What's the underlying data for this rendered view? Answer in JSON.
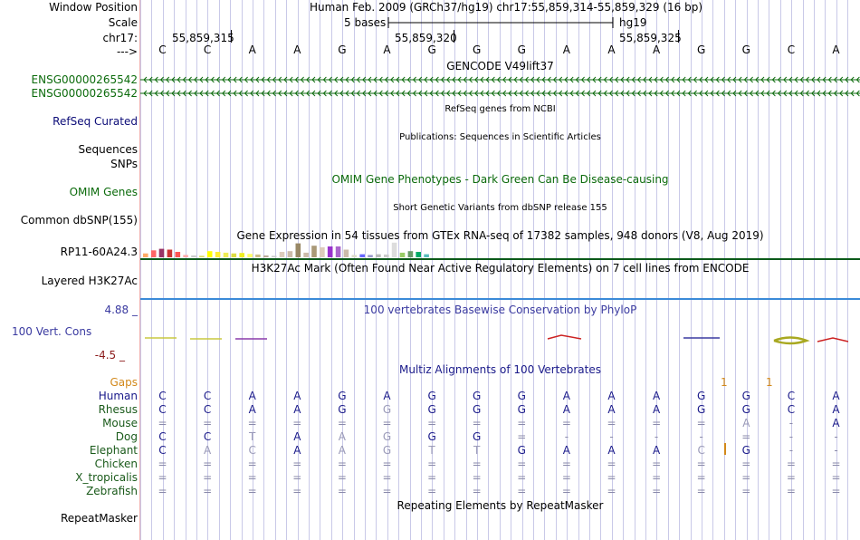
{
  "header": {
    "window_position_label": "Window Position",
    "window_position_value": "Human Feb. 2009 (GRCh37/hg19)   chr17:55,859,314-55,859,329 (16 bp)",
    "scale_label": "Scale",
    "scale_text": "5 bases",
    "scale_assembly": "hg19",
    "chrom_label": "chr17:",
    "ticks": [
      "55,859,315",
      "55,859,320",
      "55,859,325"
    ],
    "strand_label": "--->"
  },
  "bases": [
    "C",
    "C",
    "A",
    "A",
    "G",
    "A",
    "G",
    "G",
    "G",
    "A",
    "A",
    "A",
    "G",
    "G",
    "C",
    "A"
  ],
  "tracks": {
    "gencode_title": "GENCODE V49lift37",
    "gencode_ids": [
      "ENSG00000265542",
      "ENSG00000265542"
    ],
    "refseq_label": "RefSeq Curated",
    "refseq_title": "RefSeq genes from NCBI",
    "sequences_label": "Sequences",
    "sequences_title": "Publications: Sequences in Scientific Articles",
    "snps_label": "SNPs",
    "omim_title": "OMIM Gene Phenotypes - Dark Green Can Be Disease-causing",
    "omim_label": "OMIM Genes",
    "dbsnp_title": "Short Genetic Variants from dbSNP release 155",
    "dbsnp_label": "Common dbSNP(155)",
    "gtex_title": "Gene Expression in 54 tissues from GTEx RNA-seq of 17382 samples, 948 donors (V8, Aug 2019)",
    "gtex_label": "RP11-60A24.3",
    "gtex_bars": [
      {
        "v": 0.25,
        "c": "#ffaa66"
      },
      {
        "v": 0.45,
        "c": "#ff6666"
      },
      {
        "v": 0.55,
        "c": "#993366"
      },
      {
        "v": 0.5,
        "c": "#cc3333"
      },
      {
        "v": 0.35,
        "c": "#ff5555"
      },
      {
        "v": 0.15,
        "c": "#ffaaaa"
      },
      {
        "v": 0.12,
        "c": "#cccccc"
      },
      {
        "v": 0.1,
        "c": "#dddd66"
      },
      {
        "v": 0.4,
        "c": "#ffff00"
      },
      {
        "v": 0.35,
        "c": "#ffee33"
      },
      {
        "v": 0.3,
        "c": "#eeee55"
      },
      {
        "v": 0.25,
        "c": "#dddd44"
      },
      {
        "v": 0.28,
        "c": "#eeee22"
      },
      {
        "v": 0.22,
        "c": "#ffff66"
      },
      {
        "v": 0.18,
        "c": "#ccbb88"
      },
      {
        "v": 0.12,
        "c": "#bbaa99"
      },
      {
        "v": 0.1,
        "c": "#cccccc"
      },
      {
        "v": 0.35,
        "c": "#ddccbb"
      },
      {
        "v": 0.4,
        "c": "#ccbbaa"
      },
      {
        "v": 0.9,
        "c": "#998866"
      },
      {
        "v": 0.3,
        "c": "#ccbbaa"
      },
      {
        "v": 0.75,
        "c": "#aa9977"
      },
      {
        "v": 0.65,
        "c": "#ddccbb"
      },
      {
        "v": 0.7,
        "c": "#9933cc"
      },
      {
        "v": 0.7,
        "c": "#aa66cc"
      },
      {
        "v": 0.5,
        "c": "#ccbbaa"
      },
      {
        "v": 0.15,
        "c": "#ddddcc"
      },
      {
        "v": 0.2,
        "c": "#6666ff"
      },
      {
        "v": 0.15,
        "c": "#9999cc"
      },
      {
        "v": 0.2,
        "c": "#bbbbbb"
      },
      {
        "v": 0.18,
        "c": "#cccccc"
      },
      {
        "v": 0.95,
        "c": "#dddddd"
      },
      {
        "v": 0.3,
        "c": "#99cc66"
      },
      {
        "v": 0.4,
        "c": "#669966"
      },
      {
        "v": 0.35,
        "c": "#00aa66"
      },
      {
        "v": 0.2,
        "c": "#55bbbb"
      }
    ],
    "h3k27ac_title": "H3K27Ac Mark (Often Found Near Active Regulatory Elements) on 7 cell lines from ENCODE",
    "h3k27ac_label": "Layered H3K27Ac",
    "phylop_max": "4.88 _",
    "phylop_title": "100 vertebrates Basewise Conservation by PhyloP",
    "phylop_label": "100 Vert. Cons",
    "phylop_min": "-4.5 _",
    "multiz_title": "Multiz Alignments of 100 Vertebrates",
    "gaps_label": "Gaps",
    "gap_marks": [
      "1",
      "1"
    ],
    "species": [
      {
        "name": "Human",
        "bases": [
          "C",
          "C",
          "A",
          "A",
          "G",
          "A",
          "G",
          "G",
          "G",
          "A",
          "A",
          "A",
          "G",
          "G",
          "C",
          "A"
        ]
      },
      {
        "name": "Rhesus",
        "bases": [
          "C",
          "C",
          "A",
          "A",
          "G",
          "G",
          "G",
          "G",
          "G",
          "A",
          "A",
          "A",
          "G",
          "G",
          "C",
          "A"
        ]
      },
      {
        "name": "Mouse",
        "bases": [
          "=",
          "=",
          "=",
          "=",
          "=",
          "=",
          "=",
          "=",
          "=",
          "=",
          "=",
          "=",
          "=",
          "A",
          "-",
          "A"
        ]
      },
      {
        "name": "Dog",
        "bases": [
          "C",
          "C",
          "T",
          "A",
          "A",
          "G",
          "G",
          "G",
          "=",
          "-",
          "-",
          "-",
          "-",
          "=",
          "-",
          "-"
        ]
      },
      {
        "name": "Elephant",
        "bases": [
          "C",
          "A",
          "C",
          "A",
          "A",
          "G",
          "T",
          "T",
          "G",
          "A",
          "A",
          "A",
          "C",
          "G",
          "-",
          "-"
        ]
      },
      {
        "name": "Chicken",
        "bases": [
          "=",
          "=",
          "=",
          "=",
          "=",
          "=",
          "=",
          "=",
          "=",
          "=",
          "=",
          "=",
          "=",
          "=",
          "=",
          "="
        ]
      },
      {
        "name": "X_tropicalis",
        "bases": [
          "=",
          "=",
          "=",
          "=",
          "=",
          "=",
          "=",
          "=",
          "=",
          "=",
          "=",
          "=",
          "=",
          "=",
          "=",
          "="
        ]
      },
      {
        "name": "Zebrafish",
        "bases": [
          "=",
          "=",
          "=",
          "=",
          "=",
          "=",
          "=",
          "=",
          "=",
          "=",
          "=",
          "=",
          "=",
          "=",
          "=",
          "="
        ]
      }
    ],
    "repeat_title": "Repeating Elements by RepeatMasker",
    "repeat_label": "RepeatMasker"
  },
  "colors": {
    "gencode": "#0c6b0c",
    "refseq": "#0c0c78",
    "phylop": "#3a3aa0",
    "phylop_min": "#8b1a1a",
    "gaps": "#d2881a",
    "alignment": "#1a1a8a",
    "species": "#1a5a1a"
  }
}
